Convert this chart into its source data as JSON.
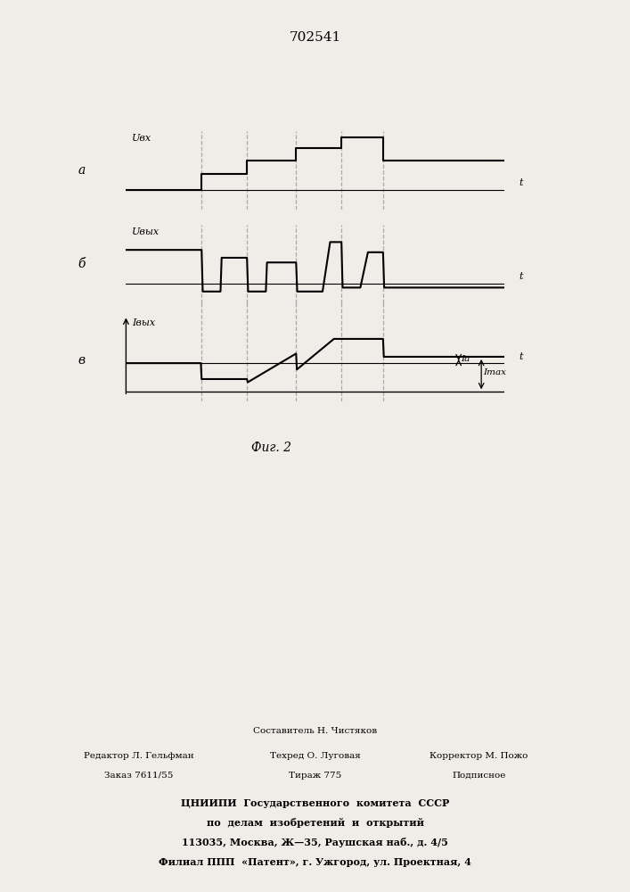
{
  "title": "702541",
  "fig_label": "Фиг. 2",
  "panel_a_label": "а",
  "panel_b_label": "б",
  "panel_c_label": "в",
  "y_label_a": "Uвх",
  "y_label_b": "Uвых",
  "y_label_c": "Iвых",
  "x_label": "t",
  "Ia_label": "Ia",
  "Imax_label": "Imax",
  "footer_line1": "Составитель Н. Чистяков",
  "footer_col1_line1": "Редактор Л. Гельфман",
  "footer_col1_line2": "Заказ 7611/55",
  "footer_col2_line1": "Техред О. Луговая",
  "footer_col2_line2": "Тираж 775",
  "footer_col3_line1": "Корректор М. Пожо",
  "footer_col3_line2": "Подписное",
  "footer_org1": "ЦНИИПИ  Государственного  комитета  СССР",
  "footer_org2": "по  делам  изобретений  и  открытий",
  "footer_org3": "113035, Москва, Ж—35, Раушская наб., д. 4/5",
  "footer_org4": "Филиал ППП  «Патент», г. Ужгород, ул. Проектная, 4",
  "bg_color": "#f0ede8",
  "line_color": "#000000",
  "dashed_color": "#aaaaaa"
}
